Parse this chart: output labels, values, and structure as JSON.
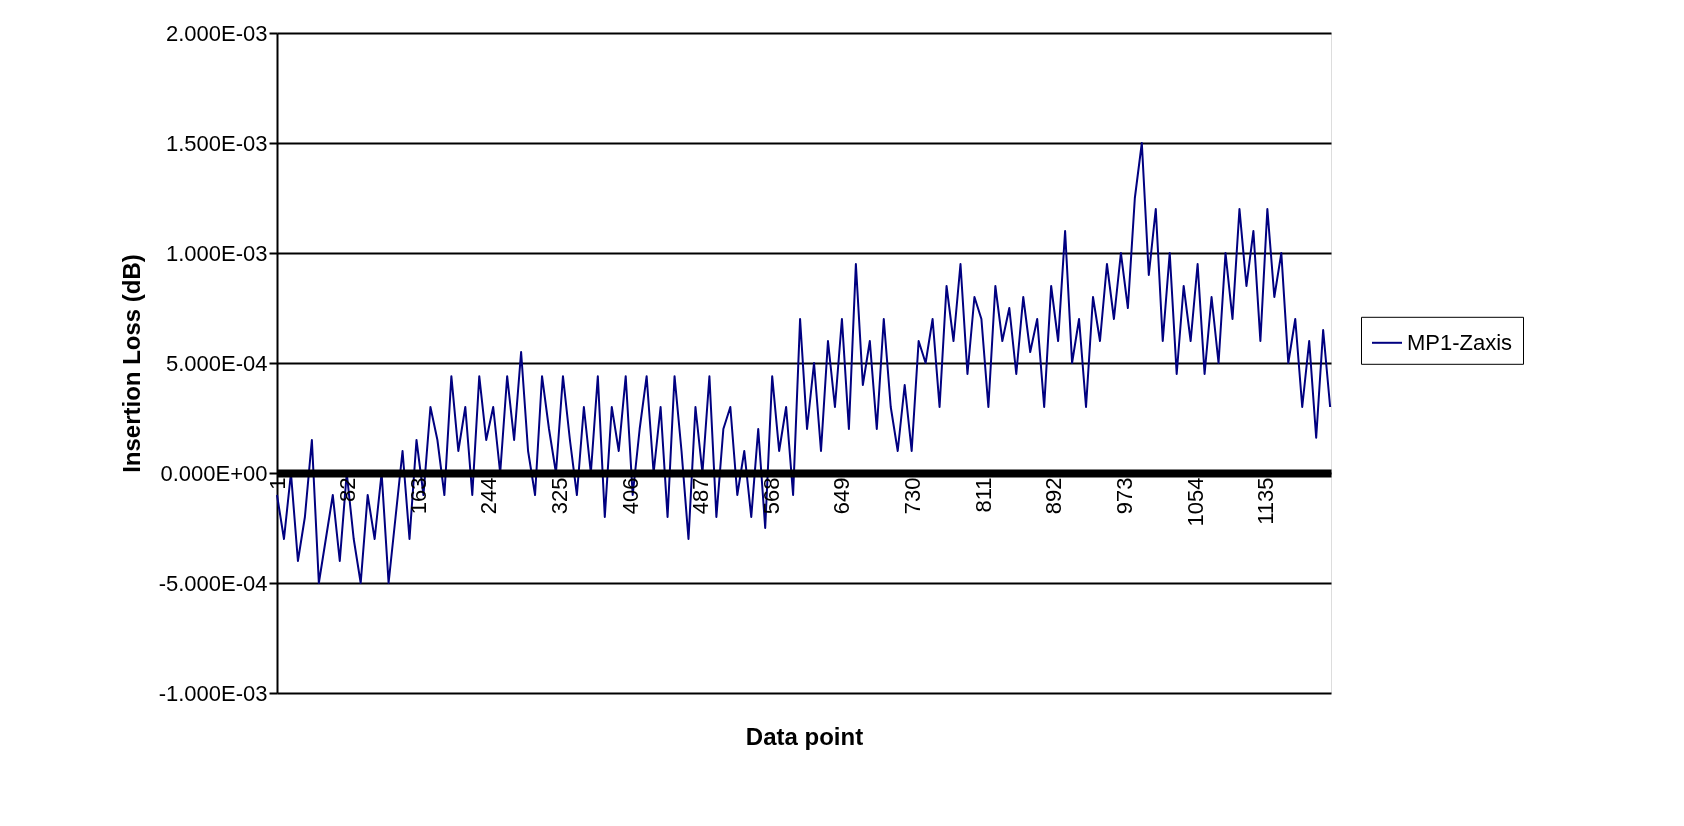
{
  "chart_data": {
    "type": "line",
    "xlabel": "Data point",
    "ylabel": "Insertion Loss (dB)",
    "x": [
      1,
      9,
      17,
      25,
      33,
      41,
      49,
      57,
      65,
      73,
      81,
      89,
      97,
      105,
      113,
      121,
      129,
      137,
      145,
      153,
      161,
      169,
      177,
      185,
      193,
      201,
      209,
      217,
      225,
      233,
      241,
      249,
      257,
      265,
      273,
      281,
      289,
      297,
      305,
      313,
      321,
      329,
      337,
      345,
      353,
      361,
      369,
      377,
      385,
      393,
      401,
      409,
      417,
      425,
      433,
      441,
      449,
      457,
      465,
      473,
      481,
      489,
      497,
      505,
      513,
      521,
      529,
      537,
      545,
      553,
      561,
      569,
      577,
      585,
      593,
      601,
      609,
      617,
      625,
      633,
      641,
      649,
      657,
      665,
      673,
      681,
      689,
      697,
      705,
      713,
      721,
      729,
      737,
      745,
      753,
      761,
      769,
      777,
      785,
      793,
      801,
      809,
      817,
      825,
      833,
      841,
      849,
      857,
      865,
      873,
      881,
      889,
      897,
      905,
      913,
      921,
      929,
      937,
      945,
      953,
      961,
      969,
      977,
      985,
      993,
      1001,
      1009,
      1017,
      1025,
      1033,
      1041,
      1049,
      1057,
      1065,
      1073,
      1081,
      1089,
      1097,
      1105,
      1113,
      1121,
      1129,
      1137,
      1145,
      1153,
      1161,
      1169,
      1177,
      1185,
      1193,
      1201,
      1209
    ],
    "series": [
      {
        "name": "MP1-Zaxis",
        "color": "#000080",
        "values": [
          -0.0001,
          -0.0003,
          0.0,
          -0.0004,
          -0.0002,
          0.00015,
          -0.0005,
          -0.0003,
          -0.0001,
          -0.0004,
          0.0,
          -0.0003,
          -0.0005,
          -0.0001,
          -0.0003,
          0.0,
          -0.0005,
          -0.0002,
          0.0001,
          -0.0003,
          0.00015,
          -0.0001,
          0.0003,
          0.00015,
          -0.0001,
          0.00044,
          0.0001,
          0.0003,
          -0.0001,
          0.00044,
          0.00015,
          0.0003,
          0.0,
          0.00044,
          0.00015,
          0.00055,
          0.0001,
          -0.0001,
          0.00044,
          0.0002,
          0.0,
          0.00044,
          0.00015,
          -0.0001,
          0.0003,
          0.0,
          0.00044,
          -0.0002,
          0.0003,
          0.0001,
          0.00044,
          -0.0001,
          0.0002,
          0.00044,
          0.0,
          0.0003,
          -0.0002,
          0.00044,
          0.0001,
          -0.0003,
          0.0003,
          0.0,
          0.00044,
          -0.0002,
          0.0002,
          0.0003,
          -0.0001,
          0.0001,
          -0.0002,
          0.0002,
          -0.00025,
          0.00044,
          0.0001,
          0.0003,
          -0.0001,
          0.0007,
          0.0002,
          0.0005,
          0.0001,
          0.0006,
          0.0003,
          0.0007,
          0.0002,
          0.00095,
          0.0004,
          0.0006,
          0.0002,
          0.0007,
          0.0003,
          0.0001,
          0.0004,
          0.0001,
          0.0006,
          0.0005,
          0.0007,
          0.0003,
          0.00085,
          0.0006,
          0.00095,
          0.00045,
          0.0008,
          0.0007,
          0.0003,
          0.00085,
          0.0006,
          0.00075,
          0.00045,
          0.0008,
          0.00055,
          0.0007,
          0.0003,
          0.00085,
          0.0006,
          0.0011,
          0.0005,
          0.0007,
          0.0003,
          0.0008,
          0.0006,
          0.00095,
          0.0007,
          0.001,
          0.00075,
          0.00125,
          0.0015,
          0.0009,
          0.0012,
          0.0006,
          0.001,
          0.00045,
          0.00085,
          0.0006,
          0.00095,
          0.00045,
          0.0008,
          0.0005,
          0.001,
          0.0007,
          0.0012,
          0.00085,
          0.0011,
          0.0006,
          0.0012,
          0.0008,
          0.001,
          0.0005,
          0.0007,
          0.0003,
          0.0006,
          0.00016,
          0.00065,
          0.0003
        ]
      }
    ],
    "xlim": [
      1,
      1210
    ],
    "xticks": [
      1,
      82,
      163,
      244,
      325,
      406,
      487,
      568,
      649,
      730,
      811,
      892,
      973,
      1054,
      1135
    ],
    "ylim": [
      -0.001,
      0.002
    ],
    "yticks": [
      {
        "value": -0.001,
        "label": "-1.000E-03"
      },
      {
        "value": -0.0005,
        "label": "-5.000E-04"
      },
      {
        "value": 0.0,
        "label": "0.000E+00"
      },
      {
        "value": 0.0005,
        "label": "5.000E-04"
      },
      {
        "value": 0.001,
        "label": "1.000E-03"
      },
      {
        "value": 0.0015,
        "label": "1.500E-03"
      },
      {
        "value": 0.002,
        "label": "2.000E-03"
      }
    ],
    "grid": "y",
    "legend": "right",
    "line_style": "solid",
    "marker": "none"
  }
}
